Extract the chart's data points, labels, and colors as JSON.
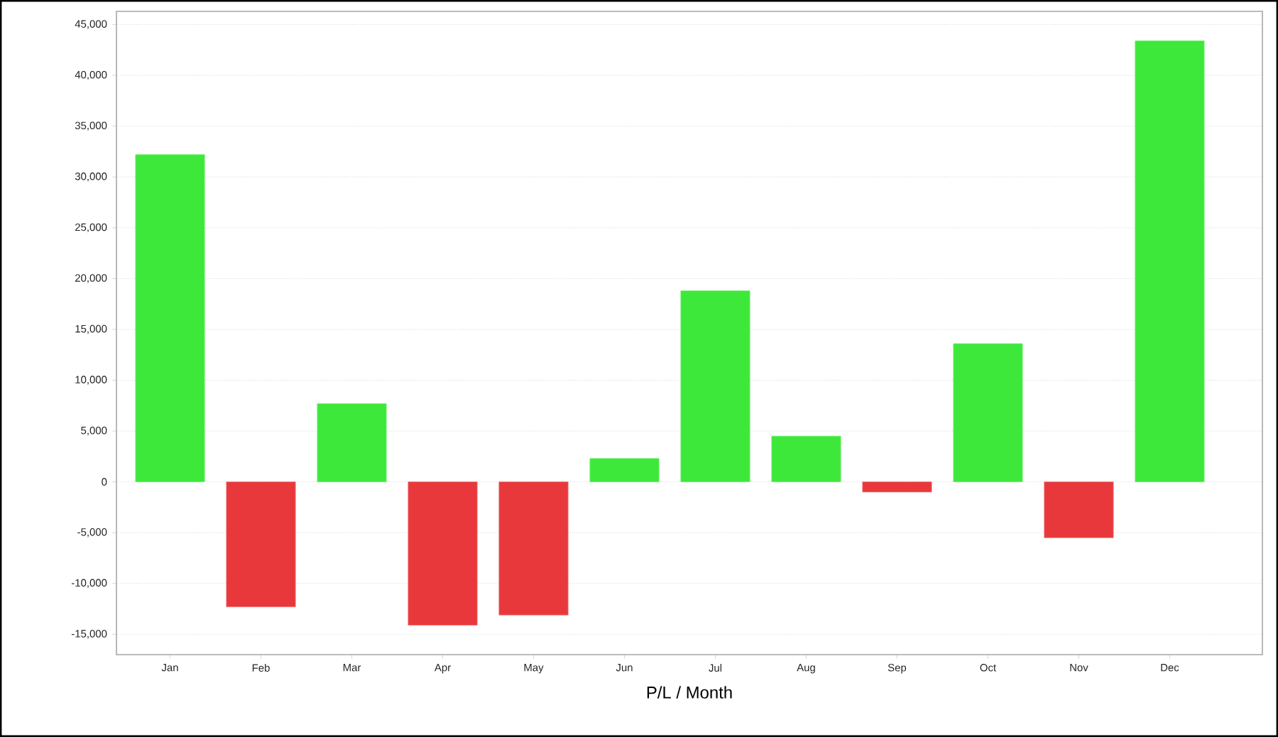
{
  "chart_data": {
    "type": "bar",
    "xlabel": "P/L / Month",
    "categories": [
      "Jan",
      "Feb",
      "Mar",
      "Apr",
      "May",
      "Jun",
      "Jul",
      "Aug",
      "Sep",
      "Oct",
      "Nov",
      "Dec"
    ],
    "values": [
      32200,
      -12300,
      7700,
      -14100,
      -13100,
      2300,
      18800,
      4500,
      -1000,
      13600,
      -5500,
      43400
    ],
    "colors": [
      "#3de83a",
      "#e8383b",
      "#3de83a",
      "#e8383b",
      "#e8383b",
      "#3de83a",
      "#3de83a",
      "#3de83a",
      "#e8383b",
      "#3de83a",
      "#e8383b",
      "#3de83a"
    ],
    "ylim": [
      -17000,
      46300
    ],
    "yticks": [
      {
        "value": -15000,
        "label": "-15,000"
      },
      {
        "value": -10000,
        "label": "-10,000"
      },
      {
        "value": -5000,
        "label": "-5,000"
      },
      0,
      {
        "value": 5000,
        "label": "5,000"
      },
      {
        "value": 10000,
        "label": "10,000"
      },
      {
        "value": 15000,
        "label": "15,000"
      },
      {
        "value": 20000,
        "label": "20,000"
      },
      {
        "value": 25000,
        "label": "25,000"
      },
      {
        "value": 30000,
        "label": "30,000"
      },
      {
        "value": 35000,
        "label": "35,000"
      },
      {
        "value": 40000,
        "label": "40,000"
      },
      {
        "value": 45000,
        "label": "45,000"
      }
    ],
    "grid": "y"
  }
}
